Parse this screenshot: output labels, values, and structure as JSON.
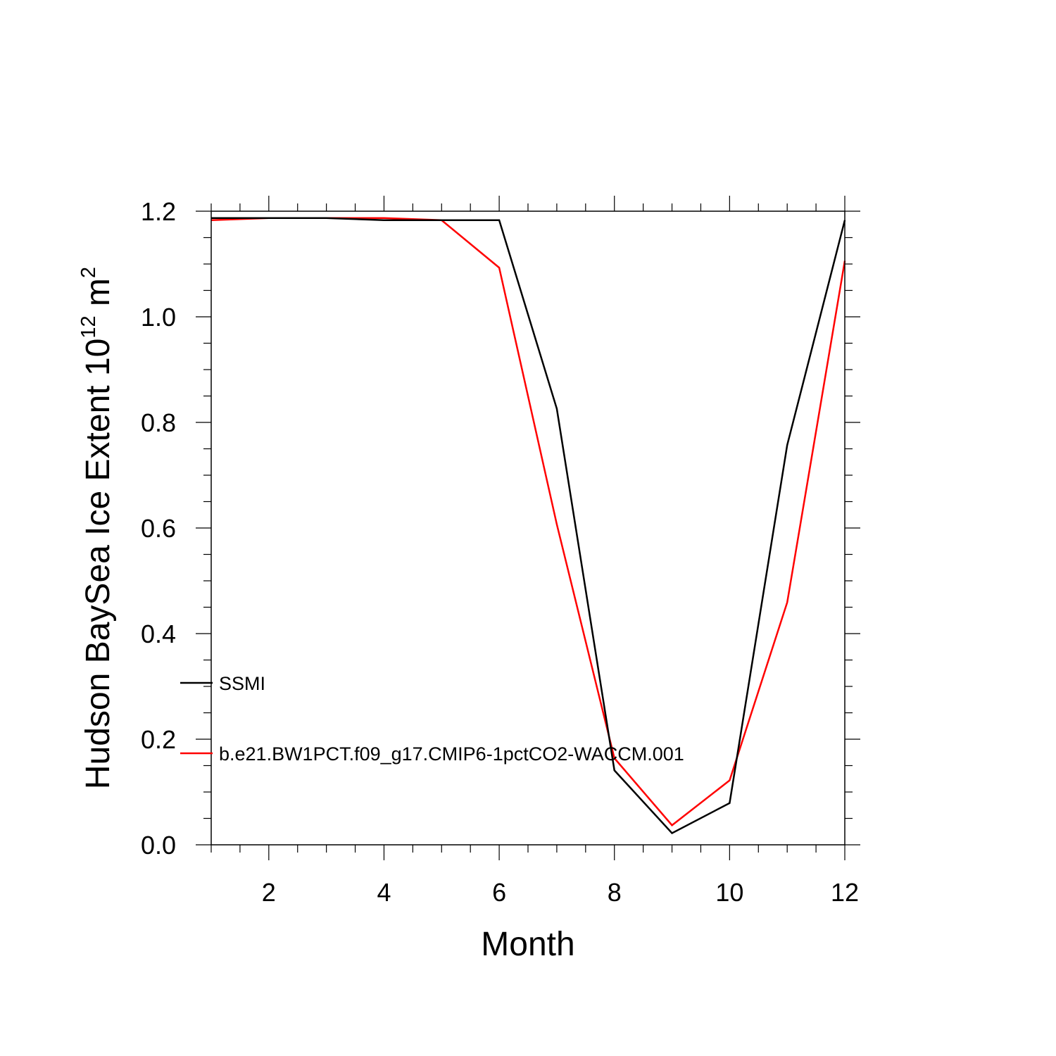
{
  "chart_data": {
    "type": "line",
    "xlabel": "Month",
    "ylabel_main": "Hudson BaySea Ice Extent 10",
    "ylabel_sup": "12",
    "ylabel_unit": " m",
    "ylabel_unit_sup": "2",
    "xlim": [
      1,
      12
    ],
    "ylim": [
      0.0,
      1.2
    ],
    "x_ticks": [
      2,
      4,
      6,
      8,
      10,
      12
    ],
    "x_tick_labels": [
      "2",
      "4",
      "6",
      "8",
      "10",
      "12"
    ],
    "y_ticks": [
      0.0,
      0.2,
      0.4,
      0.6,
      0.8,
      1.0,
      1.2
    ],
    "y_tick_labels": [
      "0.0",
      "0.2",
      "0.4",
      "0.6",
      "0.8",
      "1.0",
      "1.2"
    ],
    "grid": false,
    "legend_position": "left-inside",
    "x": [
      1,
      2,
      3,
      4,
      5,
      6,
      7,
      8,
      9,
      10,
      11,
      12
    ],
    "series": [
      {
        "name": "SSMI",
        "color": "#000000",
        "values": [
          1.187,
          1.187,
          1.187,
          1.183,
          1.183,
          1.183,
          0.826,
          0.141,
          0.022,
          0.079,
          0.757,
          1.183
        ]
      },
      {
        "name": "b.e21.BW1PCT.f09_g17.CMIP6-1pctCO2-WACCM.001",
        "color": "#ff0000",
        "values": [
          1.183,
          1.187,
          1.187,
          1.187,
          1.183,
          1.093,
          0.607,
          0.164,
          0.037,
          0.122,
          0.459,
          1.106
        ]
      }
    ]
  }
}
